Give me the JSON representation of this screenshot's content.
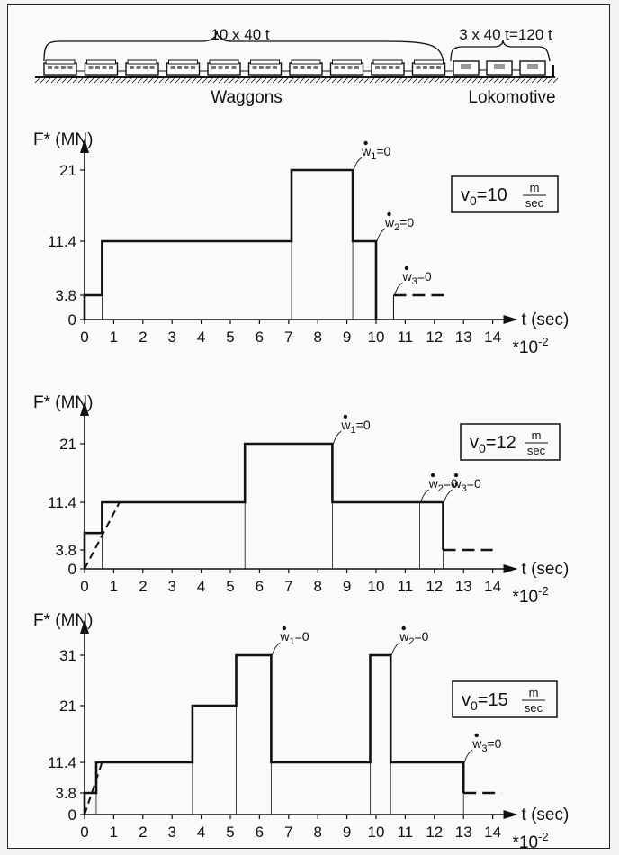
{
  "train": {
    "wagon_count_label": "10 x 40 t",
    "loco_mass_label": "3 x 40 t=120 t",
    "wagons_label": "Waggons",
    "loco_label": "Lokomotive"
  },
  "chart_data": [
    {
      "type": "line",
      "ylabel": "F* (MN)",
      "xlabel": "t (sec)",
      "x_multiplier": "*10",
      "x_multiplier_exp": "-2",
      "yticks": [
        0,
        3.8,
        11.4,
        21
      ],
      "xticks": [
        0,
        1,
        2,
        3,
        4,
        5,
        6,
        7,
        8,
        9,
        10,
        11,
        12,
        13,
        14
      ],
      "xlim": [
        0,
        14.8
      ],
      "ylim": [
        0,
        24
      ],
      "velocity": {
        "label": "v",
        "sub": "0",
        "value": "=10",
        "unit_num": "m",
        "unit_den": "sec"
      },
      "steps": [
        [
          0,
          0
        ],
        [
          0,
          3.8
        ],
        [
          0.6,
          3.8
        ],
        [
          0.6,
          11.4
        ],
        [
          7.1,
          11.4
        ],
        [
          7.1,
          21
        ],
        [
          9.2,
          21
        ],
        [
          9.2,
          11.4
        ],
        [
          10,
          11.4
        ],
        [
          10,
          0
        ]
      ],
      "dividers": [
        0.6,
        7.1,
        9.2,
        10.6
      ],
      "small_step": [
        [
          10.6,
          3.8
        ],
        [
          10.6,
          0
        ]
      ],
      "dashed": [
        [
          10.6,
          3.8
        ],
        [
          12.5,
          3.8
        ]
      ],
      "annotations": [
        {
          "base": "w",
          "sub": "1",
          "text": "=0",
          "x": 9.2,
          "y": 21
        },
        {
          "base": "w",
          "sub": "2",
          "text": "=0",
          "x": 10.0,
          "y": 11.4
        },
        {
          "base": "w",
          "sub": "3",
          "text": "=0",
          "x": 10.6,
          "y": 3.8
        }
      ]
    },
    {
      "type": "line",
      "ylabel": "F* (MN)",
      "xlabel": "t (sec)",
      "x_multiplier": "*10",
      "x_multiplier_exp": "-2",
      "yticks": [
        0,
        3.8,
        11.4,
        21
      ],
      "xticks": [
        0,
        1,
        2,
        3,
        4,
        5,
        6,
        7,
        8,
        9,
        10,
        11,
        12,
        13,
        14
      ],
      "xlim": [
        0,
        14.8
      ],
      "ylim": [
        0,
        24
      ],
      "velocity": {
        "label": "v",
        "sub": "0",
        "value": "=12",
        "unit_num": "m",
        "unit_den": "sec"
      },
      "steps": [
        [
          0,
          0
        ],
        [
          0,
          6.5
        ],
        [
          0.6,
          6.5
        ],
        [
          0.6,
          11.4
        ],
        [
          5.5,
          11.4
        ],
        [
          5.5,
          21
        ],
        [
          8.5,
          21
        ],
        [
          8.5,
          11.4
        ],
        [
          12.3,
          11.4
        ],
        [
          12.3,
          3.8
        ]
      ],
      "dividers": [
        0.6,
        5.5,
        8.5,
        11.5,
        12.3
      ],
      "dashed": [
        [
          12.3,
          3.8
        ],
        [
          14.0,
          3.8
        ]
      ],
      "ramp": [
        [
          0,
          0
        ],
        [
          1.2,
          11.4
        ]
      ],
      "annotations": [
        {
          "base": "w",
          "sub": "1",
          "text": "=0",
          "x": 8.5,
          "y": 21
        },
        {
          "base": "w",
          "sub": "2",
          "text": "=0",
          "x": 11.5,
          "y": 11.4
        },
        {
          "base": "w",
          "sub": "3",
          "text": "=0",
          "x": 12.3,
          "y": 11.4
        }
      ]
    },
    {
      "type": "line",
      "ylabel": "F* (MN)",
      "xlabel": "t (sec)",
      "x_multiplier": "*10",
      "x_multiplier_exp": "-2",
      "yticks": [
        0,
        3.8,
        11.4,
        21,
        31
      ],
      "xticks": [
        0,
        1,
        2,
        3,
        4,
        5,
        6,
        7,
        8,
        9,
        10,
        11,
        12,
        13,
        14
      ],
      "xlim": [
        0,
        14.8
      ],
      "ylim": [
        0,
        35
      ],
      "velocity": {
        "label": "v",
        "sub": "0",
        "value": "=15",
        "unit_num": "m",
        "unit_den": "sec"
      },
      "steps": [
        [
          0,
          0
        ],
        [
          0,
          3.8
        ],
        [
          0.4,
          3.8
        ],
        [
          0.4,
          11.4
        ],
        [
          3.7,
          11.4
        ],
        [
          3.7,
          21
        ],
        [
          5.2,
          21
        ],
        [
          5.2,
          31
        ],
        [
          6.4,
          31
        ],
        [
          6.4,
          11.4
        ],
        [
          9.8,
          11.4
        ],
        [
          9.8,
          31
        ],
        [
          10.5,
          31
        ],
        [
          10.5,
          11.4
        ],
        [
          13,
          11.4
        ],
        [
          13,
          3.8
        ]
      ],
      "dividers": [
        0.4,
        3.7,
        5.2,
        6.4,
        9.8,
        10.5,
        13
      ],
      "dashed": [
        [
          13,
          3.8
        ],
        [
          14.3,
          3.8
        ]
      ],
      "ramp": [
        [
          0,
          0
        ],
        [
          0.6,
          11.4
        ]
      ],
      "annotations": [
        {
          "base": "w",
          "sub": "1",
          "text": "=0",
          "x": 6.4,
          "y": 31
        },
        {
          "base": "w",
          "sub": "2",
          "text": "=0",
          "x": 10.5,
          "y": 31
        },
        {
          "base": "w",
          "sub": "3",
          "text": "=0",
          "x": 13,
          "y": 11.4
        }
      ]
    }
  ]
}
